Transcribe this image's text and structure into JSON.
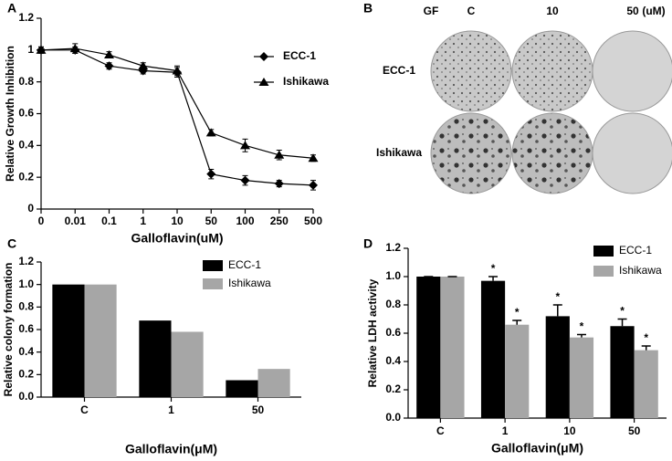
{
  "chart_data": [
    {
      "type": "line",
      "panel_label": "A",
      "x_label": "Galloflavin(uM)",
      "y_label": "Relative Growth Inhibition",
      "categories": [
        "0",
        "0.01",
        "0.1",
        "1",
        "10",
        "50",
        "100",
        "250",
        "500"
      ],
      "series": [
        {
          "name": "ECC-1",
          "color": "#000000",
          "marker": "diamond",
          "values": [
            1.0,
            1.0,
            0.9,
            0.87,
            0.86,
            0.22,
            0.18,
            0.16,
            0.15
          ],
          "errors": [
            0.02,
            0.02,
            0.02,
            0.02,
            0.03,
            0.03,
            0.03,
            0.02,
            0.03
          ]
        },
        {
          "name": "Ishikawa",
          "color": "#000000",
          "marker": "triangle",
          "values": [
            1.0,
            1.01,
            0.97,
            0.9,
            0.87,
            0.48,
            0.4,
            0.34,
            0.32
          ],
          "errors": [
            0.02,
            0.03,
            0.02,
            0.02,
            0.03,
            0.02,
            0.04,
            0.03,
            0.02
          ]
        }
      ],
      "ylim": [
        0,
        1.2
      ],
      "yticks": [
        0,
        0.2,
        0.4,
        0.6,
        0.8,
        1,
        1.2
      ],
      "legend": "upper right"
    },
    {
      "type": "image",
      "panel_label": "B",
      "column_header": "GF",
      "columns": [
        "C",
        "10",
        "50"
      ],
      "column_unit": "(uM)",
      "rows": [
        "ECC-1",
        "Ishikawa"
      ]
    },
    {
      "type": "bar",
      "panel_label": "C",
      "x_label": "Galloflavin(μM)",
      "y_label": "Relative colony formation",
      "categories": [
        "C",
        "1",
        "50"
      ],
      "series": [
        {
          "name": "ECC-1",
          "color": "#000000",
          "values": [
            1.0,
            0.68,
            0.15
          ]
        },
        {
          "name": "Ishikawa",
          "color": "#a6a6a6",
          "values": [
            1.0,
            0.58,
            0.25
          ]
        }
      ],
      "ylim": [
        0,
        1.2
      ],
      "yticks": [
        {
          "value": 0,
          "label": "0.0"
        },
        0.2,
        0.4,
        0.6,
        0.8,
        {
          "value": 1,
          "label": "1.0"
        },
        1.2
      ],
      "legend": "upper right"
    },
    {
      "type": "bar",
      "panel_label": "D",
      "x_label": "Galloflavin(μM)",
      "y_label": "Relative LDH activity",
      "categories": [
        "C",
        "1",
        "10",
        "50"
      ],
      "series": [
        {
          "name": "ECC-1",
          "color": "#000000",
          "values": [
            1.0,
            0.97,
            0.72,
            0.65
          ],
          "errors": [
            0,
            0.03,
            0.08,
            0.05
          ],
          "significance": [
            null,
            "*",
            "*",
            "*"
          ]
        },
        {
          "name": "Ishikawa",
          "color": "#a6a6a6",
          "values": [
            1.0,
            0.66,
            0.57,
            0.48
          ],
          "errors": [
            0,
            0.03,
            0.02,
            0.03
          ],
          "significance": [
            null,
            "*",
            "*",
            "*"
          ]
        }
      ],
      "ylim": [
        0,
        1.2
      ],
      "yticks": [
        {
          "value": 0,
          "label": "0.0"
        },
        0.2,
        0.4,
        0.6,
        0.8,
        {
          "value": 1,
          "label": "1.0"
        },
        1.2
      ],
      "legend": "upper right"
    }
  ]
}
